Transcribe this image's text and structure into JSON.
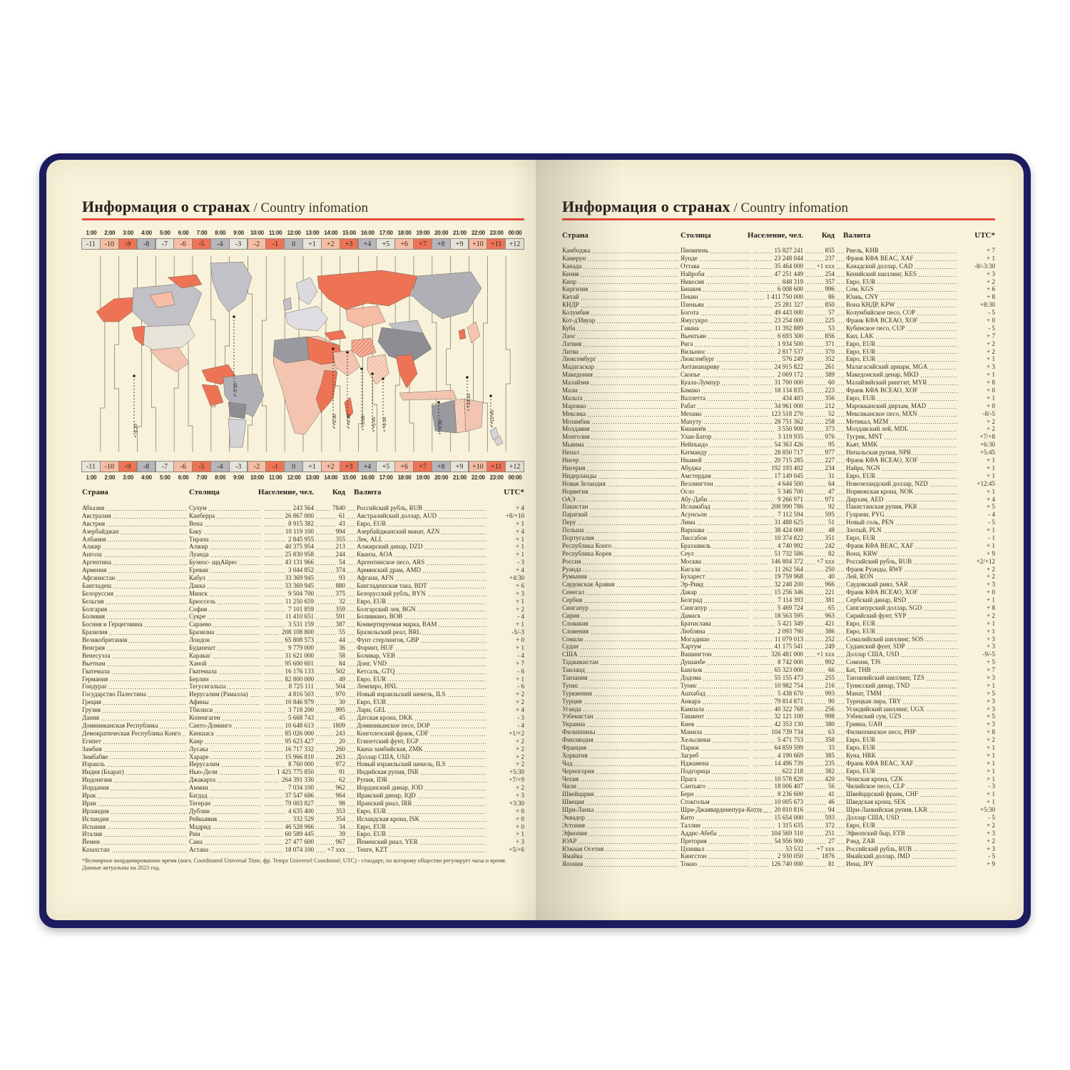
{
  "page_title": {
    "ru": "Информация о странах",
    "sep": " / ",
    "en": "Country infomation"
  },
  "colors": {
    "cover_navy": "#1c1b60",
    "page_cream": "#f9f2da",
    "accent_red": "#e8473b",
    "zone_salmon": "#ee7355",
    "zone_salmon_light": "#f6bda4",
    "zone_gray": "#b7b6bb",
    "zone_light": "#e6e3d8"
  },
  "timezone_scale": {
    "times": [
      "1:00",
      "2:00",
      "3:00",
      "4:00",
      "5:00",
      "6:00",
      "7:00",
      "8:00",
      "9:00",
      "10:00",
      "11:00",
      "12:00",
      "13:00",
      "14:00",
      "15:00",
      "16:00",
      "17:00",
      "18:00",
      "19:00",
      "20:00",
      "21:00",
      "22:00",
      "23:00",
      "00:00"
    ],
    "offsets": [
      "-11",
      "-10",
      "-9",
      "-8",
      "-7",
      "-6",
      "-5",
      "-4",
      "-3",
      "-2",
      "-1",
      "0",
      "+1",
      "+2",
      "+3",
      "+4",
      "+5",
      "+6",
      "+7",
      "+8",
      "+9",
      "+10",
      "+11",
      "+12"
    ],
    "tones": [
      "light",
      "salmonlight",
      "salmon",
      "gray",
      "light",
      "salmonlight",
      "salmon",
      "gray",
      "light",
      "salmonlight",
      "salmon",
      "gray",
      "light",
      "salmonlight",
      "salmon",
      "gray",
      "light",
      "salmonlight",
      "salmon",
      "gray",
      "light",
      "salmonlight",
      "salmon",
      "light"
    ]
  },
  "map": {
    "fractional_labels": [
      "-9:30",
      "-3:30",
      "+3:30",
      "+4:30",
      "+5:30",
      "+5:45",
      "+6:30",
      "+9:30",
      "+10:30",
      "+12:45"
    ]
  },
  "table_header": {
    "country": "Страна",
    "capital": "Столица",
    "population": "Население, чел.",
    "code": "Код",
    "currency": "Валюта",
    "utc": "UTC*"
  },
  "left_rows": [
    [
      "Абхазия",
      "Сухум",
      "243 564",
      "7840",
      "Российский рубль, RUB",
      "+ 4"
    ],
    [
      "Австралия",
      "Канберра",
      "26 867 000",
      "61",
      "Австралийский доллар, AUD",
      "+8/+10"
    ],
    [
      "Австрия",
      "Вена",
      "8 915 382",
      "43",
      "Евро, EUR",
      "+ 1"
    ],
    [
      "Азербайджан",
      "Баку",
      "10 119 100",
      "994",
      "Азербайджанский манат, AZN",
      "+ 4"
    ],
    [
      "Албания",
      "Тирана",
      "2 845 955",
      "355",
      "Лек, ALL",
      "+ 1"
    ],
    [
      "Алжир",
      "Алжир",
      "40 375 954",
      "213",
      "Алжирский динар, DZD",
      "+ 1"
    ],
    [
      "Ангола",
      "Луанда",
      "25 830 958",
      "244",
      "Кванза, AOA",
      "+ 1"
    ],
    [
      "Аргентина",
      "Буэнос- щцАйрес",
      "43 131 966",
      "54",
      "Аргентинское песо, ARS",
      "- 3"
    ],
    [
      "Армения",
      "Ереван",
      "3 044 852",
      "374",
      "Армянский драм, AMD",
      "+ 4"
    ],
    [
      "Афганистан",
      "Кабул",
      "33 369 945",
      "93",
      "Афгани, AFN",
      "+4:30"
    ],
    [
      "Бангладеш",
      "Дакка",
      "33 369 945",
      "880",
      "Бангладешская така, BDT",
      "+ 6"
    ],
    [
      "Белоруссия",
      "Минск",
      "9 504 700",
      "375",
      "Белорусский рубль, BYN",
      "+ 3"
    ],
    [
      "Бельгия",
      "Брюссель",
      "11 250 659",
      "32",
      "Евро, EUR",
      "+ 1"
    ],
    [
      "Болгария",
      "София",
      "7 101 859",
      "359",
      "Болгарский лев, BGN",
      "+ 2"
    ],
    [
      "Боливия",
      "Сукре",
      "11 410 651",
      "591",
      "Боливиано, BOB",
      "- 4"
    ],
    [
      "Босния и Герцеговина",
      "Сараево",
      "3 531 159",
      "387",
      "Конвертируемая марка, BAM",
      "+ 1"
    ],
    [
      "Бразилия",
      "Бразилиа",
      "208 108 800",
      "55",
      "Бразильский реал, BRL",
      "-5/-3"
    ],
    [
      "Великобритания",
      "Лондон",
      "65 808 573",
      "44",
      "Фунт стерлингов, GBP",
      "+ 0"
    ],
    [
      "Венгрия",
      "Будапешт",
      "9 779 000",
      "36",
      "Форинт, HUF",
      "+ 1"
    ],
    [
      "Венесуэла",
      "Каракас",
      "31 621 000",
      "58",
      "Боливар, VEB",
      "- 4"
    ],
    [
      "Вьетнам",
      "Ханой",
      "95 600 601",
      "84",
      "Донг, VND",
      "+ 7"
    ],
    [
      "Гватемала",
      "Гватемала",
      "16 176 133",
      "502",
      "Кетсаль, GTQ",
      "- 6"
    ],
    [
      "Германия",
      "Берлин",
      "82 800 000",
      "49",
      "Евро, EUR",
      "+ 1"
    ],
    [
      "Гондурас",
      "Тегусигальпа",
      "8 725 111",
      "504",
      "Лемпиро, HNL",
      "- 6"
    ],
    [
      "Государство Палестина",
      "Иерусалим (Рамалла)",
      "4 816 503",
      "970",
      "Новый израильский шекель, ILS",
      "+ 2"
    ],
    [
      "Греция",
      "Афины",
      "10 846 979",
      "30",
      "Евро, EUR",
      "+ 2"
    ],
    [
      "Грузия",
      "Тбилиси",
      "3 718 200",
      "995",
      "Лари, GEL",
      "+ 4"
    ],
    [
      "Дания",
      "Копенгаген",
      "5 668 743",
      "45",
      "Датская крона, DKK",
      "- 3"
    ],
    [
      "Доминиканская Республика",
      "Санто-Доминго",
      "10 648 613",
      "1809",
      "Доминиканское песо, DOP",
      "- 4"
    ],
    [
      "Демократическая Республика Конго",
      "Киншаса",
      "85 026 000",
      "243",
      "Конголезский франк, CDF",
      "+1/+2"
    ],
    [
      "Египет",
      "Каир",
      "95 623 427",
      "20",
      "Египетский фунт, EGP",
      "+ 2"
    ],
    [
      "Замбия",
      "Лусака",
      "16 717 332",
      "260",
      "Квача замбийская, ZMK",
      "+ 2"
    ],
    [
      "Зимбабве",
      "Хараре",
      "15 966 810",
      "263",
      "Доллар США, USD",
      "+ 2"
    ],
    [
      "Израиль",
      "Иерусалим",
      "8 760 000",
      "972",
      "Новый израильский шекель, ILS",
      "+ 2"
    ],
    [
      "Индия (Бхарат)",
      "Нью-Дели",
      "1 425 775 850",
      "91",
      "Индийская рупия, INR",
      "+5:30"
    ],
    [
      "Индонезия",
      "Джакарта",
      "264 391 330",
      "62",
      "Рупия, IDR",
      "+7/+9"
    ],
    [
      "Иордания",
      "Амман",
      "7 034 100",
      "962",
      "Иорданский динар, JOD",
      "+ 2"
    ],
    [
      "Ирак",
      "Багдад",
      "37 547 686",
      "964",
      "Иракский динар, IQD",
      "+ 3"
    ],
    [
      "Иран",
      "Тегеран",
      "79 003 827",
      "98",
      "Иранский риал, IRR",
      "+3:30"
    ],
    [
      "Ирландия",
      "Дублин",
      "4 635 400",
      "353",
      "Евро, EUR",
      "+ 0"
    ],
    [
      "Исландия",
      "Рейкьявик",
      "332 529",
      "354",
      "Исландская крона, ISK",
      "+ 0"
    ],
    [
      "Испания",
      "Мадрид",
      "46 528 966",
      "34",
      "Евро, EUR",
      "+ 0"
    ],
    [
      "Италия",
      "Рим",
      "60 589 445",
      "39",
      "Евро, EUR",
      "+ 1"
    ],
    [
      "Йемен",
      "Сана",
      "27 477 600",
      "967",
      "Йеменский риал, YER",
      "+ 3"
    ],
    [
      "Казахстан",
      "Астана",
      "18 074 100",
      "+7 xxx",
      "Тенге, KZT",
      "+5/+6"
    ]
  ],
  "right_rows": [
    [
      "Камбоджа",
      "Пномпень",
      "15 827 241",
      "855",
      "Риель, KHR",
      "+ 7"
    ],
    [
      "Камерун",
      "Яунде",
      "23 248 044",
      "237",
      "Франк КФА BEAC, XAF",
      "+ 1"
    ],
    [
      "Канада",
      "Оттава",
      "35 464 000",
      "+1 xxx",
      "Канадский доллар, CAD",
      "-8/-3:30"
    ],
    [
      "Кения",
      "Найроби",
      "47 251 449",
      "254",
      "Кенийский шиллинг, KES",
      "+ 3"
    ],
    [
      "Кипр",
      "Никосия",
      "848 319",
      "357",
      "Евро, EUR",
      "+ 2"
    ],
    [
      "Киргизия",
      "Бишкек",
      "6 008 600",
      "996",
      "Сом, KGS",
      "+ 6"
    ],
    [
      "Китай",
      "Пекин",
      "1 411 750 000",
      "86",
      "Юань, CNY",
      "+ 8"
    ],
    [
      "КНДР",
      "Пхеньян",
      "25 281 327",
      "850",
      "Вона КНДР, KPW",
      "+8:30"
    ],
    [
      "Колумбия",
      "Богота",
      "49 443 000",
      "57",
      "Колумбийское песо, COP",
      "- 5"
    ],
    [
      "Кот-д'Ивуар",
      "Ямусукро",
      "23 254 000",
      "225",
      "Франк КФА ВСЕАО, XOF",
      "+ 0"
    ],
    [
      "Куба",
      "Гавана",
      "11 392 889",
      "53",
      "Кубинское песо, CUP",
      "- 5"
    ],
    [
      "Лаос",
      "Вьентьян",
      "6 693 300",
      "856",
      "Кип, LAK",
      "+ 7"
    ],
    [
      "Латвия",
      "Рига",
      "1 934 500",
      "371",
      "Евро, EUR",
      "+ 2"
    ],
    [
      "Литва",
      "Вильнюс",
      "2 817 537",
      "370",
      "Евро, EUR",
      "+ 2"
    ],
    [
      "Люксембург",
      "Люксембург",
      "576 249",
      "352",
      "Евро, EUR",
      "+ 1"
    ],
    [
      "Мадагаскар",
      "Антананариву",
      "24 915 822",
      "261",
      "Малагасийский ариари, MGA",
      "+ 3"
    ],
    [
      "Македония",
      "Скопье",
      "2 069 172",
      "389",
      "Македонский денар, MKD",
      "+ 1"
    ],
    [
      "Малайзия",
      "Куала-Лумпур",
      "31 700 000",
      "60",
      "Малайзийский ринггит, MYR",
      "+ 8"
    ],
    [
      "Мали",
      "Бамако",
      "18 134 835",
      "223",
      "Франк КФА ВСЕАО, XOF",
      "+ 0"
    ],
    [
      "Мальта",
      "Валлетта",
      "434 403",
      "356",
      "Евро, EUR",
      "+ 1"
    ],
    [
      "Марокко",
      "Рабат",
      "34 961 000",
      "212",
      "Марокканский дирхам, MAD",
      "+ 0"
    ],
    [
      "Мексика",
      "Мехико",
      "123 518 270",
      "52",
      "Мексиканское песо, MXN",
      "-8/-5"
    ],
    [
      "Мозамбик",
      "Мапуту",
      "28 751 362",
      "258",
      "Метикал, MZM",
      "+ 2"
    ],
    [
      "Молдавия",
      "Кишинёв",
      "3 550 900",
      "373",
      "Молдавский лей, MDL",
      "+ 2"
    ],
    [
      "Монголия",
      "Улан-Батор",
      "3 119 935",
      "976",
      "Тугрик, MNT",
      "+7/+8"
    ],
    [
      "Мьянма",
      "Нейпьидо",
      "54 363 426",
      "95",
      "Кьят, MMK",
      "+6:30"
    ],
    [
      "Непал",
      "Катманду",
      "28 850 717",
      "977",
      "Непальская рупия, NPR",
      "+5:45"
    ],
    [
      "Нигер",
      "Ниамей",
      "20 715 285",
      "227",
      "Франк КФА ВСЕАО, XOF",
      "+ 1"
    ],
    [
      "Нигерия",
      "Абуджа",
      "192 193 402",
      "234",
      "Найра, NGN",
      "+ 1"
    ],
    [
      "Нидерланды",
      "Амстердам",
      "17 149 045",
      "31",
      "Евро, EUR",
      "+ 1"
    ],
    [
      "Новая Зеландия",
      "Веллингтон",
      "4 644 500",
      "64",
      "Новозеландский доллар, NZD",
      "+12:45"
    ],
    [
      "Норвегия",
      "Осло",
      "5 346 700",
      "47",
      "Норвежская крона, NOK",
      "+ 1"
    ],
    [
      "ОАЭ",
      "Абу-Даби",
      "9 266 971",
      "971",
      "Дирхам, AED",
      "+ 4"
    ],
    [
      "Пакистан",
      "Исламабад",
      "208 990 786",
      "92",
      "Пакистанская рупия, PKR",
      "+ 5"
    ],
    [
      "Парагвай",
      "Асунсьон",
      "7 112 594",
      "595",
      "Гуарани, PYG",
      "- 4"
    ],
    [
      "Перу",
      "Лима",
      "31 488 625",
      "51",
      "Новый соль, PEN",
      "- 5"
    ],
    [
      "Польша",
      "Варшава",
      "38 424 000",
      "48",
      "Злотый, PLN",
      "+ 1"
    ],
    [
      "Португалия",
      "Лиссабон",
      "10 374 822",
      "351",
      "Евро, EUR",
      "- 1"
    ],
    [
      "Республика Конго",
      "Браззавиль",
      "4 740 992",
      "242",
      "Франк КФА BEAC, XAF",
      "+ 1"
    ],
    [
      "Республика Корея",
      "Сеул",
      "51 732 586",
      "82",
      "Вона, KRW",
      "+ 9"
    ],
    [
      "Россия",
      "Москва",
      "146 804 372",
      "+7 xxx",
      "Российский рубль, RUB",
      "+2/+12"
    ],
    [
      "Руанда",
      "Кигали",
      "11 262 564",
      "250",
      "Франк Руанды, RWF",
      "+ 2"
    ],
    [
      "Румыния",
      "Бухарест",
      "19 759 968",
      "40",
      "Лей, RON",
      "+ 2"
    ],
    [
      "Саудовская Аравия",
      "Эр-Рияд",
      "32 248 200",
      "966",
      "Саудовский риял, SAR",
      "+ 3"
    ],
    [
      "Сенегал",
      "Дакар",
      "15 256 346",
      "221",
      "Франк КФА ВСЕАО, XOF",
      "+ 0"
    ],
    [
      "Сербия",
      "Белград",
      "7 114 393",
      "381",
      "Сербский динар, RSD",
      "+ 1"
    ],
    [
      "Сингапур",
      "Сингапур",
      "5 469 724",
      "65",
      "Сингапурский доллар, SGD",
      "+ 8"
    ],
    [
      "Сирия",
      "Дамаск",
      "18 563 595",
      "963",
      "Сирийский фунт, SYP",
      "+ 2"
    ],
    [
      "Словакия",
      "Братислава",
      "5 421 349",
      "421",
      "Евро, EUR",
      "+ 1"
    ],
    [
      "Словения",
      "Любляна",
      "2 093 790",
      "386",
      "Евро, EUR",
      "+ 1"
    ],
    [
      "Сомали",
      "Могадишо",
      "11 079 013",
      "252",
      "Сомалийский шиллинг, SOS",
      "+ 3"
    ],
    [
      "Судан",
      "Хартум",
      "41 175 541",
      "249",
      "Суданский фунт, SDP",
      "+ 3"
    ],
    [
      "США",
      "Вашингтон",
      "326 481 000",
      "+1 xxx",
      "Доллар США, USD",
      "-9/-5"
    ],
    [
      "Таджикистан",
      "Душанбе",
      "8 742 000",
      "992",
      "Сомони, TJS",
      "+ 5"
    ],
    [
      "Таиланд",
      "Бангкок",
      "65 323 000",
      "66",
      "Бат, THB",
      "+ 7"
    ],
    [
      "Танзания",
      "Додома",
      "55 155 473",
      "255",
      "Танзанийский шиллинг, TZS",
      "+ 3"
    ],
    [
      "Тунис",
      "Тунис",
      "10 982 754",
      "216",
      "Тунисский динар, TND",
      "+ 1"
    ],
    [
      "Туркмения",
      "Ашхабад",
      "5 438 670",
      "993",
      "Манат, TMM",
      "+ 5"
    ],
    [
      "Турция",
      "Анкара",
      "79 814 871",
      "90",
      "Турецкая лира, TRY",
      "+ 3"
    ],
    [
      "Уганда",
      "Кампала",
      "40 322 768",
      "256",
      "Угандийский шиллинг, UGX",
      "+ 3"
    ],
    [
      "Узбекистан",
      "Ташкент",
      "32 121 100",
      "998",
      "Узбекский сум, UZS",
      "+ 5"
    ],
    [
      "Украина",
      "Киев",
      "42 353 130",
      "380",
      "Гривна, UAH",
      "+ 3"
    ],
    [
      "Филиппины",
      "Манила",
      "104 739 734",
      "63",
      "Филиппинское песо, PHP",
      "+ 8"
    ],
    [
      "Финляндия",
      "Хельсинки",
      "5 471 753",
      "358",
      "Евро, EUR",
      "+ 2"
    ],
    [
      "Франция",
      "Париж",
      "64 859 599",
      "33",
      "Евро, EUR",
      "+ 1"
    ],
    [
      "Хорватия",
      "Загреб",
      "4 190 669",
      "385",
      "Куна, HRK",
      "+ 1"
    ],
    [
      "Чад",
      "Нджамена",
      "14 496 739",
      "235",
      "Франк КФА BEAC, XAF",
      "+ 1"
    ],
    [
      "Черногория",
      "Подгорица",
      "622 218",
      "382",
      "Евро, EUR",
      "+ 1"
    ],
    [
      "Чехия",
      "Прага",
      "10 578 820",
      "420",
      "Чешская крона, CZK",
      "+ 1"
    ],
    [
      "Чили",
      "Сантьяго",
      "18 006 407",
      "56",
      "Чилийское песо, CLP",
      "- 3"
    ],
    [
      "Швейцария",
      "Берн",
      "8 236 600",
      "41",
      "Швейцарский франк, CHF",
      "+ 1"
    ],
    [
      "Швеция",
      "Стокгольм",
      "10 005 673",
      "46",
      "Шведская крона, SEK",
      "+ 1"
    ],
    [
      "Шри-Ланка",
      "Шри-Джаяварденепура-Котте",
      "20 810 816",
      "94",
      "Шри-Ланкийская рупия, LKR",
      "+5:30"
    ],
    [
      "Эквадор",
      "Кито",
      "15 654 000",
      "593",
      "Доллар США, USD",
      "- 5"
    ],
    [
      "Эстония",
      "Таллин",
      "1 315 635",
      "372",
      "Евро, EUR",
      "+ 2"
    ],
    [
      "Эфиопия",
      "Аддис-Абеба",
      "104 569 310",
      "251",
      "Эфиопский быр, ETB",
      "+ 3"
    ],
    [
      "ЮАР",
      "Претория",
      "54 956 900",
      "27",
      "Рэнд, ZAR",
      "+ 2"
    ],
    [
      "Южная Осетия",
      "Цхинвал",
      "53 532",
      "+7 xxx",
      "Российский рубль, RUB",
      "+ 3"
    ],
    [
      "Ямайка",
      "Кингстон",
      "2 930 050",
      "1876",
      "Ямайский доллар, JMD",
      "- 5"
    ],
    [
      "Япония",
      "Токио",
      "126 740 000",
      "81",
      "Иена, JPY",
      "+ 9"
    ]
  ],
  "footnote": {
    "line1": "*Всемирное координированное время (англ. Coordinated Universal Time, фр. Temps Universel Coordonné; UTC) - стандарт, по которому общество регулирует часы и время.",
    "line2": "Данные актуальны на 2023 год."
  }
}
